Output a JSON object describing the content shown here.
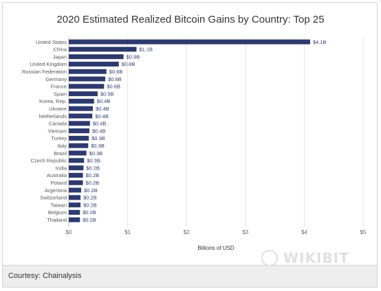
{
  "chart_data": {
    "type": "bar",
    "orientation": "horizontal",
    "title": "2020 Estimated Realized Bitcoin Gains by Country: Top 25",
    "xlabel": "Billions of USD",
    "ylabel": "",
    "xlim": [
      0,
      5
    ],
    "xticks": [
      "$0",
      "$1",
      "$2",
      "$3",
      "$4",
      "$5"
    ],
    "grid": true,
    "bar_color": "#2e3a6e",
    "categories": [
      "United States",
      "China",
      "Japan",
      "United Kingdom",
      "Russian Federation",
      "Germany",
      "France",
      "Spain",
      "Korea, Rep.",
      "Ukraine",
      "Netherlands",
      "Canada",
      "Vietnam",
      "Turkey",
      "Italy",
      "Brazil",
      "Czech Republic",
      "India",
      "Australia",
      "Poland",
      "Argentina",
      "Switzerland",
      "Taiwan",
      "Belgium",
      "Thailand"
    ],
    "values": [
      4.1,
      1.15,
      0.93,
      0.85,
      0.64,
      0.62,
      0.6,
      0.49,
      0.43,
      0.41,
      0.4,
      0.36,
      0.35,
      0.34,
      0.33,
      0.3,
      0.26,
      0.25,
      0.24,
      0.24,
      0.21,
      0.2,
      0.2,
      0.19,
      0.19
    ],
    "value_labels": [
      "$4.1B",
      "$1.1B",
      "$0.9B",
      "$0.8B",
      "$0.6B",
      "$0.6B",
      "$0.6B",
      "$0.5B",
      "$0.4B",
      "$0.4B",
      "$0.4B",
      "$0.4B",
      "$0.4B",
      "$0.3B",
      "$0.3B",
      "$0.3B",
      "$0.3B",
      "$0.2B",
      "$0.2B",
      "$0.2B",
      "$0.2B",
      "$0.2B",
      "$0.2B",
      "$0.2B",
      "$0.2B"
    ]
  },
  "footer": {
    "text": "Courtesy: Chainalysis"
  },
  "watermark": {
    "text": "WIKIBIT"
  }
}
